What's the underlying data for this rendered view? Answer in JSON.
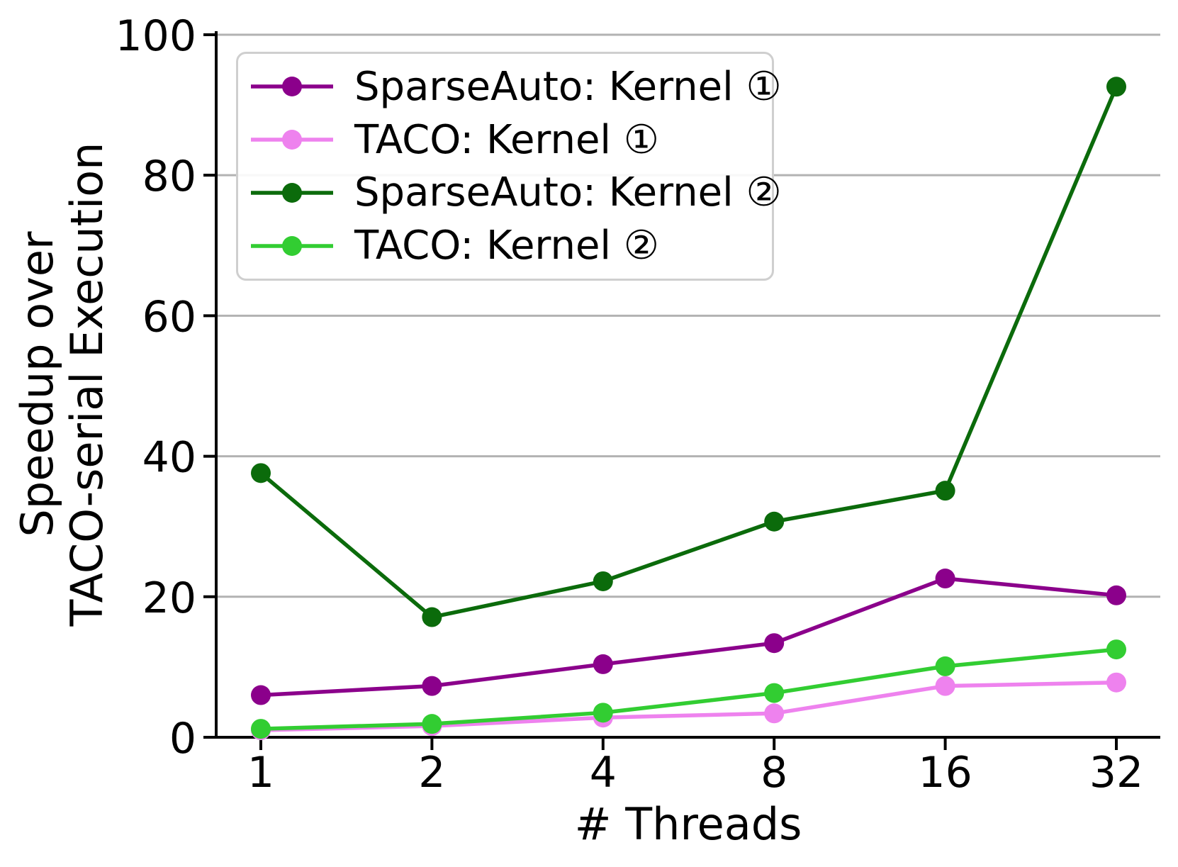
{
  "chart_data": {
    "type": "line",
    "title": "",
    "xlabel": "# Threads",
    "ylabel_lines": [
      "Speedup over",
      "TACO-serial Execution"
    ],
    "x_scale": "categorical-log2",
    "categories": [
      1,
      2,
      4,
      8,
      16,
      32
    ],
    "x_ticklabels": [
      "1",
      "2",
      "4",
      "8",
      "16",
      "32"
    ],
    "y_ticks": [
      0,
      20,
      40,
      60,
      80,
      100
    ],
    "ylim": [
      0,
      100.5
    ],
    "grid": "horizontal-only",
    "grid_color": "#b2b2b2",
    "axis_color": "#000000",
    "legend_position": "upper-left",
    "series": [
      {
        "name": "SparseAuto: Kernel ①",
        "slug": "sparseauto-kernel-1",
        "color": "#8B008B",
        "values": [
          6.0,
          7.3,
          10.4,
          13.4,
          22.6,
          20.2
        ]
      },
      {
        "name": "TACO: Kernel ①",
        "slug": "taco-kernel-1",
        "color": "#EE82EE",
        "values": [
          1.0,
          1.6,
          2.8,
          3.4,
          7.3,
          7.8
        ]
      },
      {
        "name": "SparseAuto: Kernel ②",
        "slug": "sparseauto-kernel-2",
        "color": "#0B6B0B",
        "values": [
          37.6,
          17.1,
          22.2,
          30.7,
          35.1,
          92.6
        ]
      },
      {
        "name": "TACO: Kernel ②",
        "slug": "taco-kernel-2",
        "color": "#32CD32",
        "values": [
          1.2,
          1.9,
          3.5,
          6.3,
          10.1,
          12.5
        ]
      }
    ]
  }
}
